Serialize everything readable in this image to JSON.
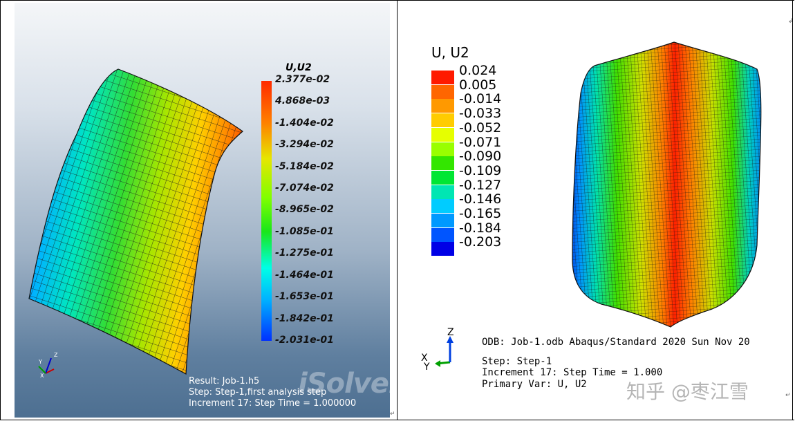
{
  "left_panel": {
    "legend": {
      "title": "U,U2",
      "labels": [
        "2.377e-02",
        "4.868e-03",
        "-1.404e-02",
        "-3.294e-02",
        "-5.184e-02",
        "-7.074e-02",
        "-8.965e-02",
        "-1.085e-01",
        "-1.275e-01",
        "-1.464e-01",
        "-1.653e-01",
        "-1.842e-01",
        "-2.031e-01"
      ]
    },
    "triad": {
      "x": "X",
      "y": "Y",
      "z": "Z"
    },
    "caption": {
      "line1": "Result: Job-1.h5",
      "line2": "Step: Step-1,first analysis step",
      "line3": "Increment      17: Step Time =    1.000000"
    },
    "watermark": "iSolver"
  },
  "right_panel": {
    "legend": {
      "title": "U, U2",
      "labels": [
        "0.024",
        "0.005",
        "-0.014",
        "-0.033",
        "-0.052",
        "-0.071",
        "-0.090",
        "-0.109",
        "-0.127",
        "-0.146",
        "-0.165",
        "-0.184",
        "-0.203"
      ],
      "colors": [
        "#ff1a00",
        "#ff6600",
        "#ff9900",
        "#ffcc00",
        "#e6ff00",
        "#99ff00",
        "#33e600",
        "#00e633",
        "#00e6b3",
        "#00ccff",
        "#0099ff",
        "#0055ff",
        "#0000e6"
      ]
    },
    "triad": {
      "x": "X",
      "y": "Y",
      "z": "Z"
    },
    "info": {
      "odb": "ODB: Job-1.odb    Abaqus/Standard 2020    Sun Nov 20",
      "step": "Step: Step-1",
      "increment": "Increment    17: Step Time =    1.000",
      "primary_var": "Primary Var: U, U2"
    },
    "watermark": "知乎 @枣江雪"
  },
  "marks": {
    "para": "↵",
    "corner": "↲"
  }
}
